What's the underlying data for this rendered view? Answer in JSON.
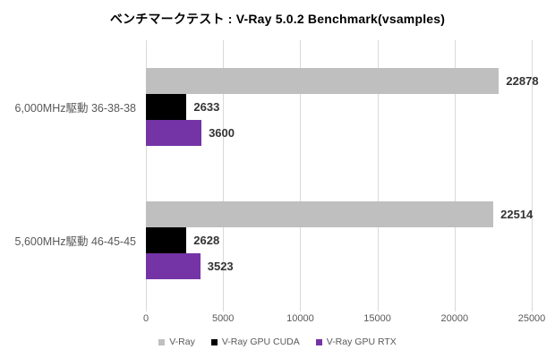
{
  "title": "ベンチマークテスト : V-Ray 5.0.2 Benchmark(vsamples)",
  "chart_data": {
    "type": "bar",
    "orientation": "horizontal",
    "title": "ベンチマークテスト : V-Ray 5.0.2 Benchmark(vsamples)",
    "categories": [
      "6,000MHz駆動 36-38-38",
      "5,600MHz駆動 46-45-45"
    ],
    "series": [
      {
        "name": "V-Ray",
        "color": "#bfbfbf",
        "values": [
          22878,
          22514
        ]
      },
      {
        "name": "V-Ray GPU CUDA",
        "color": "#000000",
        "values": [
          2633,
          2628
        ]
      },
      {
        "name": "V-Ray GPU RTX",
        "color": "#7434a6",
        "values": [
          3600,
          3523
        ]
      }
    ],
    "xlim": [
      0,
      25000
    ],
    "x_ticks": [
      0,
      5000,
      10000,
      15000,
      20000,
      25000
    ],
    "grid": true,
    "value_labels": true,
    "legend_position": "bottom"
  },
  "colors": {
    "gridline": "#d9d9d9",
    "axis_text": "#595959",
    "category_text": "#595959",
    "value_label_text": "#333333",
    "legend_text": "#595959",
    "title_text": "#000000",
    "background": "#ffffff"
  }
}
